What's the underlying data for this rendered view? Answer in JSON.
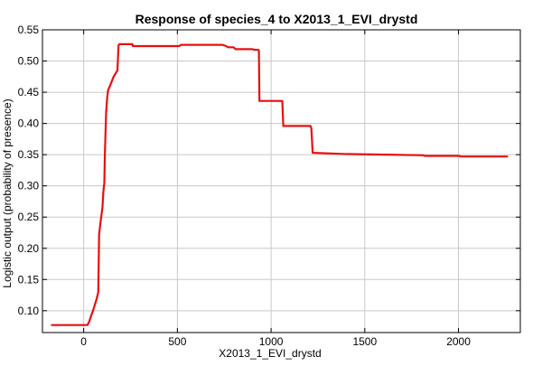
{
  "chart_data": {
    "type": "line",
    "title": "Response of species_4 to X2013_1_EVI_drystd",
    "xlabel": "X2013_1_EVI_drystd",
    "ylabel": "Logistic output (probability of presence)",
    "xlim": [
      -220,
      2330
    ],
    "ylim": [
      0.065,
      0.55
    ],
    "xticks": [
      0,
      500,
      1000,
      1500,
      2000
    ],
    "yticks": [
      0.1,
      0.15,
      0.2,
      0.25,
      0.3,
      0.35,
      0.4,
      0.45,
      0.5,
      0.55
    ],
    "xtick_labels": [
      "0",
      "500",
      "1000",
      "1500",
      "2000"
    ],
    "ytick_labels": [
      "0.10",
      "0.15",
      "0.20",
      "0.25",
      "0.30",
      "0.35",
      "0.40",
      "0.45",
      "0.50",
      "0.55"
    ],
    "grid": true,
    "line_color": "#e81010",
    "series": [
      {
        "x": [
          -170,
          20,
          30,
          40,
          50,
          60,
          70,
          78,
          82,
          90,
          100,
          105,
          110,
          113,
          116,
          120,
          125,
          130,
          140,
          160,
          180,
          186,
          190,
          260,
          262,
          400,
          510,
          520,
          740,
          760,
          770,
          800,
          810,
          900,
          910,
          930,
          935,
          938,
          940,
          1060,
          1065,
          1070,
          1210,
          1215,
          1222,
          1226,
          1400,
          1420,
          1610,
          1620,
          1810,
          1820,
          2005,
          2010,
          2260
        ],
        "y": [
          0.077,
          0.077,
          0.083,
          0.092,
          0.1,
          0.11,
          0.12,
          0.13,
          0.222,
          0.242,
          0.265,
          0.29,
          0.305,
          0.35,
          0.38,
          0.418,
          0.44,
          0.453,
          0.46,
          0.475,
          0.485,
          0.525,
          0.527,
          0.527,
          0.524,
          0.524,
          0.524,
          0.526,
          0.526,
          0.524,
          0.522,
          0.522,
          0.519,
          0.519,
          0.518,
          0.518,
          0.517,
          0.436,
          0.436,
          0.436,
          0.396,
          0.396,
          0.396,
          0.392,
          0.353,
          0.353,
          0.351,
          0.351,
          0.35,
          0.35,
          0.349,
          0.348,
          0.348,
          0.347,
          0.347
        ]
      }
    ]
  }
}
